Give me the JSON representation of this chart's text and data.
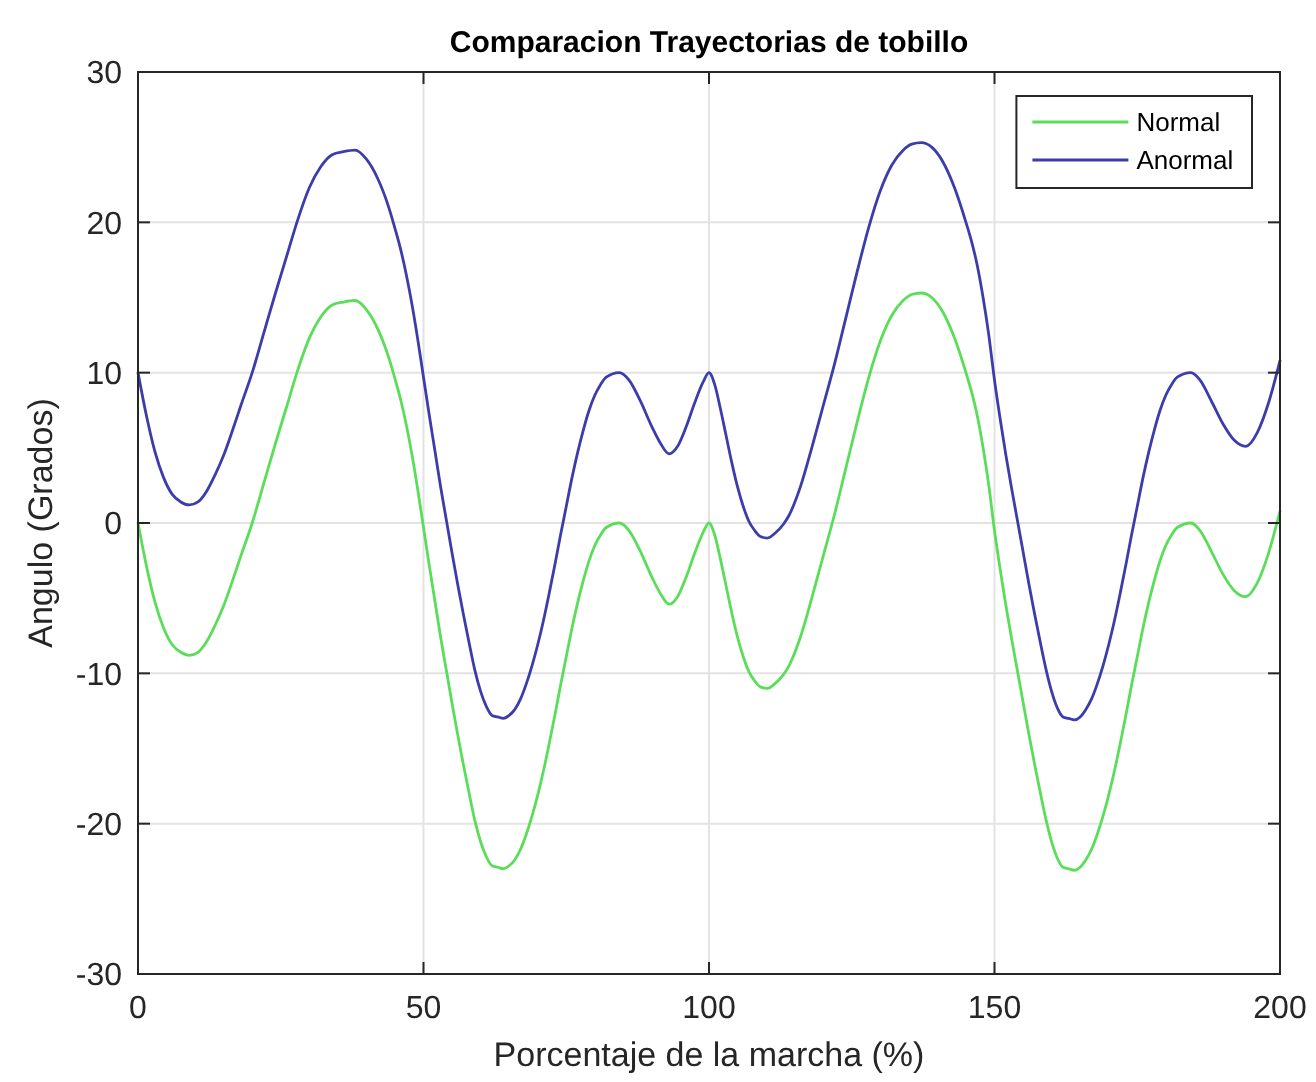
{
  "chart_data": {
    "type": "line",
    "title": "Comparacion Trayectorias de tobillo",
    "xlabel": "Porcentaje de la marcha (%)",
    "ylabel": "Angulo (Grados)",
    "x": [
      0,
      1.5,
      3,
      4.5,
      6,
      7.5,
      9,
      10.5,
      12,
      13.5,
      15,
      16.5,
      18,
      20,
      22,
      24,
      26,
      28,
      30,
      32,
      34,
      36,
      38,
      40,
      42,
      44,
      45,
      46,
      47,
      48,
      49,
      50,
      51,
      52,
      53,
      54,
      55,
      56,
      57,
      58,
      59,
      60,
      61,
      62,
      63,
      64,
      65,
      66,
      67,
      68,
      69,
      70,
      71,
      72,
      73,
      74,
      75,
      76,
      77,
      78,
      79,
      80,
      81,
      82,
      84.3,
      86,
      88,
      90,
      91.5,
      93,
      94.5,
      96,
      97.5,
      99,
      100,
      101,
      102,
      103,
      104,
      105,
      106,
      107,
      108,
      109,
      110.2,
      111.5,
      113,
      114,
      116,
      118,
      120,
      122,
      124,
      126,
      128,
      130,
      132,
      134,
      135.5,
      137.2,
      139,
      141,
      143,
      145,
      146,
      147,
      148,
      149,
      150,
      151,
      152,
      153,
      154,
      155,
      156,
      157,
      158,
      159,
      160,
      161,
      162,
      163,
      164,
      165,
      166,
      167,
      168,
      169,
      170,
      171,
      172,
      173,
      174,
      175,
      176,
      177,
      178,
      179,
      180,
      181,
      182,
      184.4,
      186,
      188,
      190,
      192,
      194,
      196,
      198,
      200
    ],
    "series": [
      {
        "name": "Normal",
        "color": "#5ade5a",
        "values": [
          0,
          -2.9,
          -5.3,
          -7.0,
          -8.1,
          -8.6,
          -8.8,
          -8.6,
          -7.9,
          -6.8,
          -5.5,
          -3.9,
          -2.2,
          0,
          2.6,
          5.2,
          7.7,
          10.2,
          12.3,
          13.7,
          14.5,
          14.7,
          14.8,
          14.2,
          12.9,
          10.9,
          9.6,
          8.2,
          6.5,
          4.5,
          2.2,
          -0.3,
          -2.8,
          -5.2,
          -7.6,
          -9.8,
          -12.0,
          -14.1,
          -16.1,
          -18.0,
          -19.8,
          -21.2,
          -22.2,
          -22.8,
          -22.9,
          -23.0,
          -22.8,
          -22.4,
          -21.7,
          -20.7,
          -19.5,
          -18.1,
          -16.5,
          -14.7,
          -12.8,
          -10.8,
          -8.9,
          -7.0,
          -5.3,
          -3.8,
          -2.5,
          -1.5,
          -0.8,
          -0.3,
          0,
          -0.5,
          -1.9,
          -3.6,
          -4.7,
          -5.4,
          -4.9,
          -3.6,
          -2.0,
          -0.6,
          0,
          -0.8,
          -2.4,
          -4.2,
          -6.0,
          -7.6,
          -8.9,
          -9.9,
          -10.5,
          -10.9,
          -11.0,
          -10.7,
          -10.1,
          -9.5,
          -7.6,
          -5.0,
          -2.2,
          0.6,
          3.7,
          6.8,
          9.7,
          12.1,
          13.8,
          14.8,
          15.2,
          15.3,
          15.0,
          14.0,
          12.3,
          10.0,
          8.7,
          7.1,
          5.0,
          2.5,
          -0.5,
          -3.1,
          -5.5,
          -7.7,
          -9.8,
          -11.9,
          -14.0,
          -16.0,
          -17.9,
          -19.7,
          -21.2,
          -22.3,
          -22.9,
          -23.0,
          -23.1,
          -22.9,
          -22.4,
          -21.7,
          -20.7,
          -19.5,
          -18.1,
          -16.5,
          -14.7,
          -12.8,
          -10.8,
          -8.9,
          -7.0,
          -5.3,
          -3.8,
          -2.5,
          -1.5,
          -0.8,
          -0.3,
          0,
          -0.5,
          -1.9,
          -3.4,
          -4.5,
          -4.9,
          -4.0,
          -2.0,
          0.8
        ]
      },
      {
        "name": "Anormal",
        "color": "#3c3caa",
        "values": [
          10,
          7.1,
          4.7,
          3.0,
          1.9,
          1.4,
          1.2,
          1.4,
          2.1,
          3.2,
          4.5,
          6.1,
          7.8,
          10,
          12.6,
          15.2,
          17.7,
          20.2,
          22.3,
          23.7,
          24.5,
          24.7,
          24.8,
          24.2,
          22.9,
          20.9,
          19.6,
          18.2,
          16.5,
          14.5,
          12.2,
          9.7,
          7.2,
          4.8,
          2.4,
          0.2,
          -2.0,
          -4.1,
          -6.1,
          -8.0,
          -9.8,
          -11.2,
          -12.2,
          -12.8,
          -12.9,
          -13.0,
          -12.8,
          -12.4,
          -11.7,
          -10.7,
          -9.5,
          -8.1,
          -6.5,
          -4.7,
          -2.8,
          -0.8,
          1.1,
          3.0,
          4.7,
          6.2,
          7.5,
          8.5,
          9.2,
          9.7,
          10,
          9.5,
          8.1,
          6.4,
          5.3,
          4.6,
          5.1,
          6.4,
          8.0,
          9.4,
          10,
          9.2,
          7.6,
          5.8,
          4.0,
          2.4,
          1.1,
          0.1,
          -0.5,
          -0.9,
          -1.0,
          -0.7,
          -0.1,
          0.5,
          2.4,
          5.0,
          7.8,
          10.6,
          13.7,
          16.8,
          19.7,
          22.1,
          23.8,
          24.8,
          25.2,
          25.3,
          25.0,
          24.0,
          22.3,
          20.0,
          18.7,
          17.1,
          15.0,
          12.5,
          9.5,
          6.9,
          4.5,
          2.3,
          0.2,
          -1.9,
          -4.0,
          -6.0,
          -7.9,
          -9.7,
          -11.2,
          -12.3,
          -12.9,
          -13.0,
          -13.1,
          -12.9,
          -12.4,
          -11.7,
          -10.7,
          -9.5,
          -8.1,
          -6.5,
          -4.7,
          -2.8,
          -0.8,
          1.1,
          3.0,
          4.7,
          6.2,
          7.5,
          8.5,
          9.2,
          9.7,
          10,
          9.5,
          8.1,
          6.6,
          5.5,
          5.1,
          6.0,
          8.0,
          10.8
        ]
      }
    ],
    "xlim": [
      0,
      200
    ],
    "xticks": [
      0,
      50,
      100,
      150,
      200
    ],
    "ylim": [
      -30,
      30
    ],
    "yticks": [
      -30,
      -20,
      -10,
      0,
      10,
      20,
      30
    ],
    "grid": true,
    "legend": "top right"
  }
}
